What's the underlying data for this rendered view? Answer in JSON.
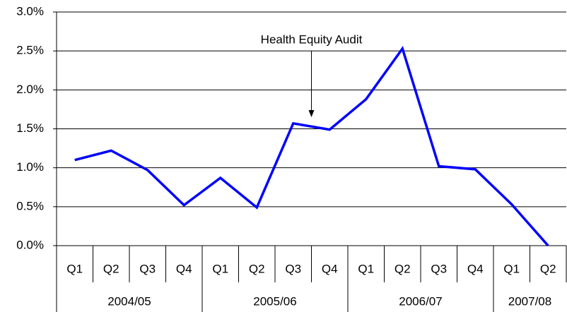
{
  "chart_data": {
    "type": "line",
    "annotation": "Health Equity Audit",
    "groups": [
      {
        "label": "2004/05",
        "categories": [
          "Q1",
          "Q2",
          "Q3",
          "Q4"
        ]
      },
      {
        "label": "2005/06",
        "categories": [
          "Q1",
          "Q2",
          "Q3",
          "Q4"
        ]
      },
      {
        "label": "2006/07",
        "categories": [
          "Q1",
          "Q2",
          "Q3",
          "Q4"
        ]
      },
      {
        "label": "2007/08",
        "categories": [
          "Q1",
          "Q2"
        ]
      }
    ],
    "values": [
      1.1,
      1.22,
      0.97,
      0.52,
      0.87,
      0.49,
      1.57,
      1.49,
      1.88,
      2.53,
      1.02,
      0.98,
      0.53,
      0.0
    ],
    "color": "#0000ff",
    "ylim": [
      0,
      3
    ],
    "yticks": [
      {
        "value": 0,
        "label": "0.0%"
      },
      {
        "value": 0.5,
        "label": "0.5%"
      },
      {
        "value": 1,
        "label": "1.0%"
      },
      {
        "value": 1.5,
        "label": "1.5%"
      },
      {
        "value": 2,
        "label": "2.0%"
      },
      {
        "value": 2.5,
        "label": "2.5%"
      },
      {
        "value": 3,
        "label": "3.0%"
      }
    ],
    "grid": true
  }
}
